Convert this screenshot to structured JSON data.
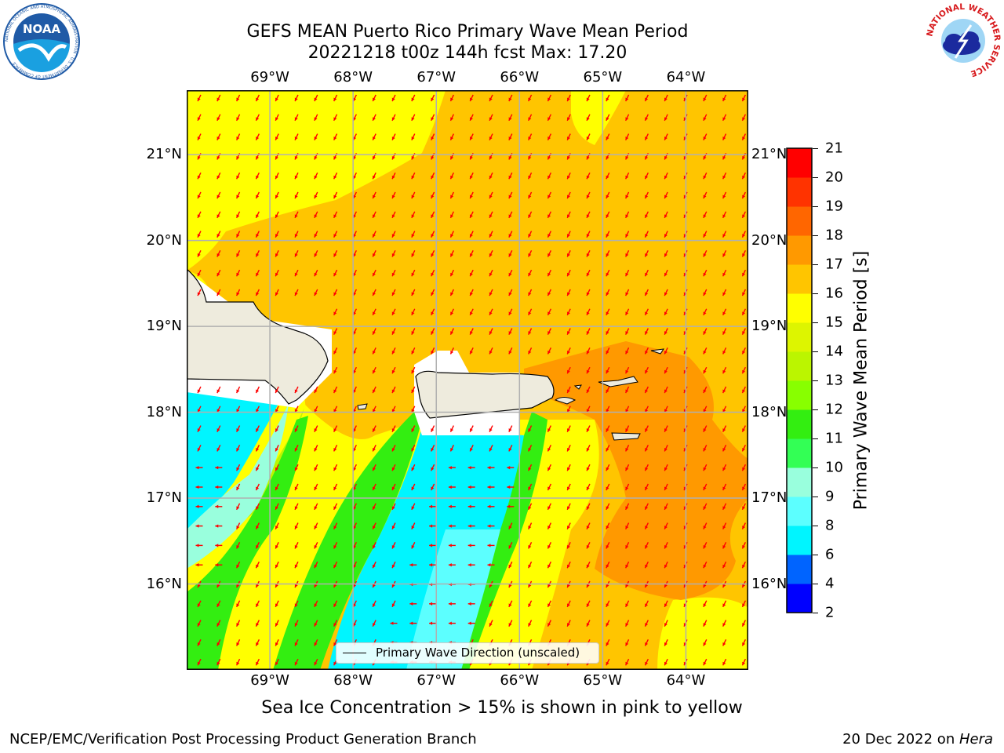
{
  "header": {
    "title_line1": "GEFS MEAN Puerto Rico Primary Wave Mean Period",
    "title_line2": "20221218 t00z 144h fcst   Max: 17.20"
  },
  "logos": {
    "left": {
      "name": "noaa-logo",
      "text": "NOAA",
      "ring_text": "NATIONAL OCEANIC AND ATMOSPHERIC ADMINISTRATION · U.S. DEPARTMENT OF COMMERCE",
      "color": "#1f5aa6"
    },
    "right": {
      "name": "nws-logo",
      "ring_text": "NATIONAL WEATHER SERVICE",
      "color": "#d7191c"
    }
  },
  "map": {
    "lon_labels": [
      "69°W",
      "68°W",
      "67°W",
      "66°W",
      "65°W",
      "64°W"
    ],
    "lat_labels": [
      "21°N",
      "20°N",
      "19°N",
      "18°N",
      "17°N",
      "16°N"
    ],
    "lon_range": [
      -70.0,
      -63.25
    ],
    "lat_range": [
      15.0,
      21.75
    ],
    "lon_ticks": [
      -69,
      -68,
      -67,
      -66,
      -65,
      -64
    ],
    "lat_ticks": [
      21,
      20,
      19,
      18,
      17,
      16
    ],
    "background_period_s": 16.5,
    "arrow_direction": "NNE-to-SSW (pointing south-southwest); westward in the low-period band south of Puerto Rico",
    "land_color": "#eeebdd",
    "legend_label": "Primary Wave Direction (unscaled)"
  },
  "colorbar": {
    "label": "Primary Wave Mean Period [s]",
    "ticks": [
      "21",
      "20",
      "19",
      "18",
      "17",
      "16",
      "15",
      "14",
      "13",
      "12",
      "11",
      "10",
      "9",
      "8",
      "6",
      "4",
      "2"
    ],
    "levels": [
      2,
      4,
      6,
      8,
      9,
      10,
      11,
      12,
      13,
      14,
      15,
      16,
      17,
      18,
      19,
      20,
      21
    ],
    "colors": [
      "#0000ff",
      "#0064ff",
      "#00f5ff",
      "#5cffff",
      "#99ffdd",
      "#33ff55",
      "#33ee11",
      "#88ff00",
      "#bbf500",
      "#ddf500",
      "#ffff00",
      "#ffc500",
      "#ff9900",
      "#ff6600",
      "#ff3300",
      "#ff0000"
    ]
  },
  "footer": {
    "note": "Sea Ice Concentration > 15% is shown in pink to yellow",
    "credit": "NCEP/EMC/Verification Post Processing Product Generation Branch",
    "date": "20 Dec 2022 on ",
    "machine": "Hera"
  }
}
